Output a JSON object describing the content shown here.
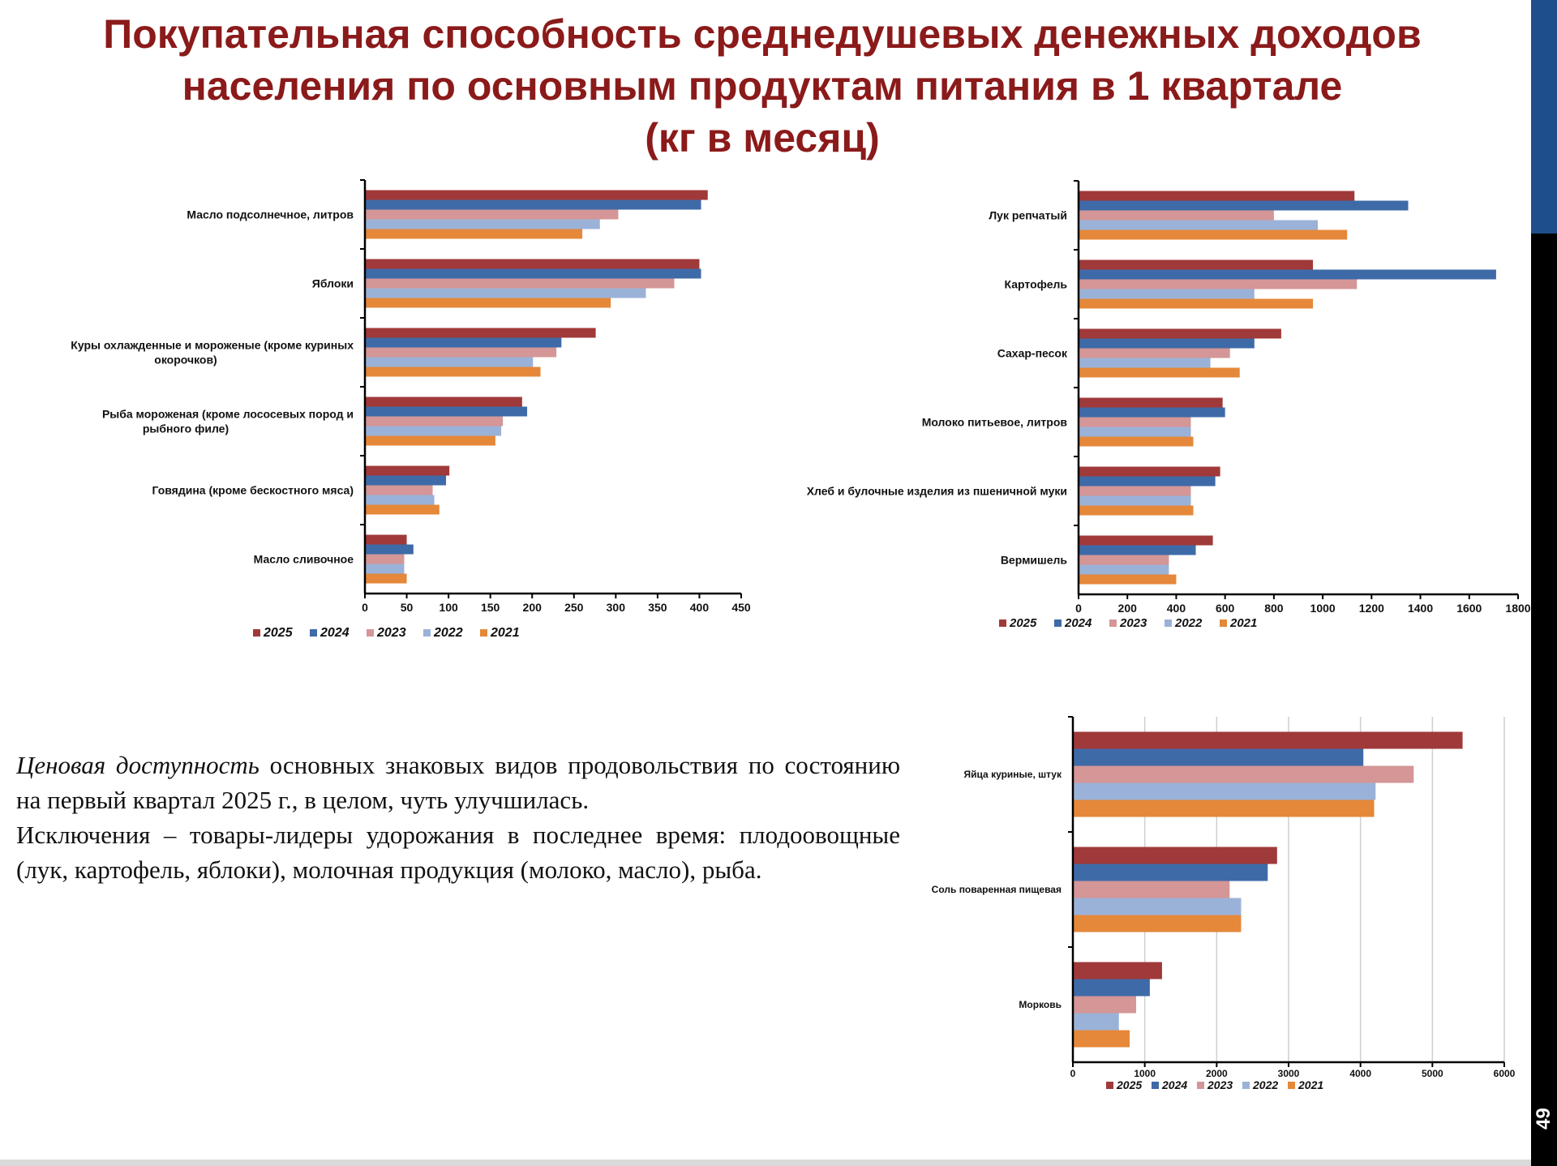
{
  "title": {
    "line1": "Покупательная способность среднедушевых денежных доходов",
    "line2": "населения по основным продуктам питания в 1 квартале",
    "line3": "(кг в месяц)"
  },
  "page_number": "49",
  "text": {
    "emphasis": "Ценовая доступность",
    "sentence1_rest": " основных знаковых видов продовольствия по состоянию на первый квартал 2025 г., в целом, чуть улучшилась.",
    "sentence2": "Исключения – товары-лидеры удорожания в последнее время: плодоовощные (лук, картофель, яблоки), молочная продукция (молоко, масло), рыба."
  },
  "colors": {
    "2025": "#a0393a",
    "2024": "#3e6aa8",
    "2023": "#d49696",
    "2022": "#9bb2d8",
    "2021": "#e5883a"
  },
  "chart_data": [
    {
      "type": "bar",
      "orientation": "horizontal",
      "categories": [
        "Масло подсолнечное, литров",
        "Яблоки",
        "Куры охлажденные и мороженые (кроме куриных окорочков)",
        "Рыба мороженая (кроме лососевых пород и рыбного филе)",
        "Говядина (кроме бескостного мяса)",
        "Масло сливочное"
      ],
      "category_lines": [
        [
          "Масло подсолнечное, литров"
        ],
        [
          "Яблоки"
        ],
        [
          "Куры охлажденные и мороженые (кроме куриных",
          "окорочков)"
        ],
        [
          "Рыба мороженая (кроме лососевых пород и",
          "рыбного филе)"
        ],
        [
          "Говядина (кроме бескостного мяса)"
        ],
        [
          "Масло сливочное"
        ]
      ],
      "series": [
        {
          "name": "2025",
          "values": [
            410,
            400,
            276,
            188,
            101,
            50
          ]
        },
        {
          "name": "2024",
          "values": [
            402,
            402,
            235,
            194,
            97,
            58
          ]
        },
        {
          "name": "2023",
          "values": [
            303,
            370,
            229,
            165,
            81,
            47
          ]
        },
        {
          "name": "2022",
          "values": [
            281,
            336,
            201,
            163,
            83,
            47
          ]
        },
        {
          "name": "2021",
          "values": [
            260,
            294,
            210,
            156,
            89,
            50
          ]
        }
      ],
      "xlim": [
        0,
        450
      ],
      "ticks": [
        0,
        50,
        100,
        150,
        200,
        250,
        300,
        350,
        400,
        450
      ],
      "legend": [
        "2025",
        "2024",
        "2023",
        "2022",
        "2021"
      ],
      "legend_position": "bottom",
      "grid": false
    },
    {
      "type": "bar",
      "orientation": "horizontal",
      "categories": [
        "Лук репчатый",
        "Картофель",
        "Сахар-песок",
        "Молоко питьевое, литров",
        "Хлеб и булочные изделия из пшеничной муки",
        "Вермишель"
      ],
      "category_lines": [
        [
          "Лук репчатый"
        ],
        [
          "Картофель"
        ],
        [
          "Сахар-песок"
        ],
        [
          "Молоко питьевое, литров"
        ],
        [
          "Хлеб и булочные изделия из пшеничной муки"
        ],
        [
          "Вермишель"
        ]
      ],
      "series": [
        {
          "name": "2025",
          "values": [
            1130,
            960,
            830,
            590,
            580,
            550
          ]
        },
        {
          "name": "2024",
          "values": [
            1350,
            1710,
            720,
            600,
            560,
            480
          ]
        },
        {
          "name": "2023",
          "values": [
            800,
            1140,
            620,
            460,
            460,
            370
          ]
        },
        {
          "name": "2022",
          "values": [
            980,
            720,
            540,
            460,
            460,
            370
          ]
        },
        {
          "name": "2021",
          "values": [
            1100,
            960,
            660,
            470,
            470,
            400
          ]
        }
      ],
      "xlim": [
        0,
        1800
      ],
      "ticks": [
        0,
        200,
        400,
        600,
        800,
        1000,
        1200,
        1400,
        1600,
        1800
      ],
      "legend": [
        "2025",
        "2024",
        "2023",
        "2022",
        "2021"
      ],
      "legend_position": "bottom",
      "grid": false
    },
    {
      "type": "bar",
      "orientation": "horizontal",
      "categories": [
        "Яйца куриные, штук",
        "Соль поваренная пищевая",
        "Морковь"
      ],
      "category_lines": [
        [
          "Яйца куриные, штук"
        ],
        [
          "Соль поваренная пищевая"
        ],
        [
          "Морковь"
        ]
      ],
      "series": [
        {
          "name": "2025",
          "values": [
            5420,
            2840,
            1240
          ]
        },
        {
          "name": "2024",
          "values": [
            4040,
            2710,
            1070
          ]
        },
        {
          "name": "2023",
          "values": [
            4740,
            2180,
            880
          ]
        },
        {
          "name": "2022",
          "values": [
            4210,
            2340,
            640
          ]
        },
        {
          "name": "2021",
          "values": [
            4190,
            2340,
            790
          ]
        }
      ],
      "xlim": [
        0,
        6000
      ],
      "ticks": [
        0,
        1000,
        2000,
        3000,
        4000,
        5000,
        6000
      ],
      "legend": [
        "2025",
        "2024",
        "2023",
        "2022",
        "2021"
      ],
      "legend_position": "bottom",
      "grid": true
    }
  ]
}
